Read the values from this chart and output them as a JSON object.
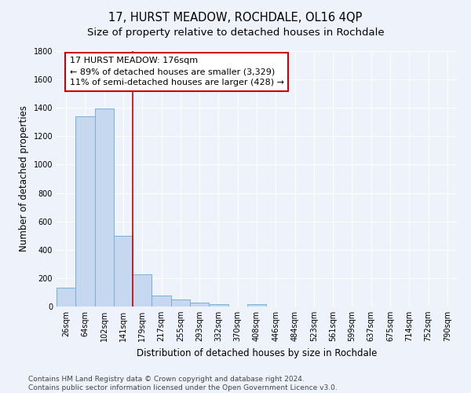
{
  "title": "17, HURST MEADOW, ROCHDALE, OL16 4QP",
  "subtitle": "Size of property relative to detached houses in Rochdale",
  "xlabel": "Distribution of detached houses by size in Rochdale",
  "ylabel": "Number of detached properties",
  "bar_labels": [
    "26sqm",
    "64sqm",
    "102sqm",
    "141sqm",
    "179sqm",
    "217sqm",
    "255sqm",
    "293sqm",
    "332sqm",
    "370sqm",
    "408sqm",
    "446sqm",
    "484sqm",
    "523sqm",
    "561sqm",
    "599sqm",
    "637sqm",
    "675sqm",
    "714sqm",
    "752sqm",
    "790sqm"
  ],
  "bar_values": [
    135,
    1340,
    1395,
    500,
    225,
    80,
    48,
    28,
    18,
    0,
    18,
    0,
    0,
    0,
    0,
    0,
    0,
    0,
    0,
    0,
    0
  ],
  "bar_color": "#c5d8ef",
  "bar_edge_color": "#7aafd4",
  "vline_color": "#cc0000",
  "annotation_line1": "17 HURST MEADOW: 176sqm",
  "annotation_line2": "← 89% of detached houses are smaller (3,329)",
  "annotation_line3": "11% of semi-detached houses are larger (428) →",
  "annotation_box_color": "#ffffff",
  "annotation_box_edge": "#cc0000",
  "ylim": [
    0,
    1800
  ],
  "yticks": [
    0,
    200,
    400,
    600,
    800,
    1000,
    1200,
    1400,
    1600,
    1800
  ],
  "footnote": "Contains HM Land Registry data © Crown copyright and database right 2024.\nContains public sector information licensed under the Open Government Licence v3.0.",
  "bg_color": "#eef2fa",
  "grid_color": "#ffffff",
  "title_fontsize": 10.5,
  "subtitle_fontsize": 9.5,
  "label_fontsize": 8.5,
  "tick_fontsize": 7,
  "annot_fontsize": 8,
  "footnote_fontsize": 6.5
}
